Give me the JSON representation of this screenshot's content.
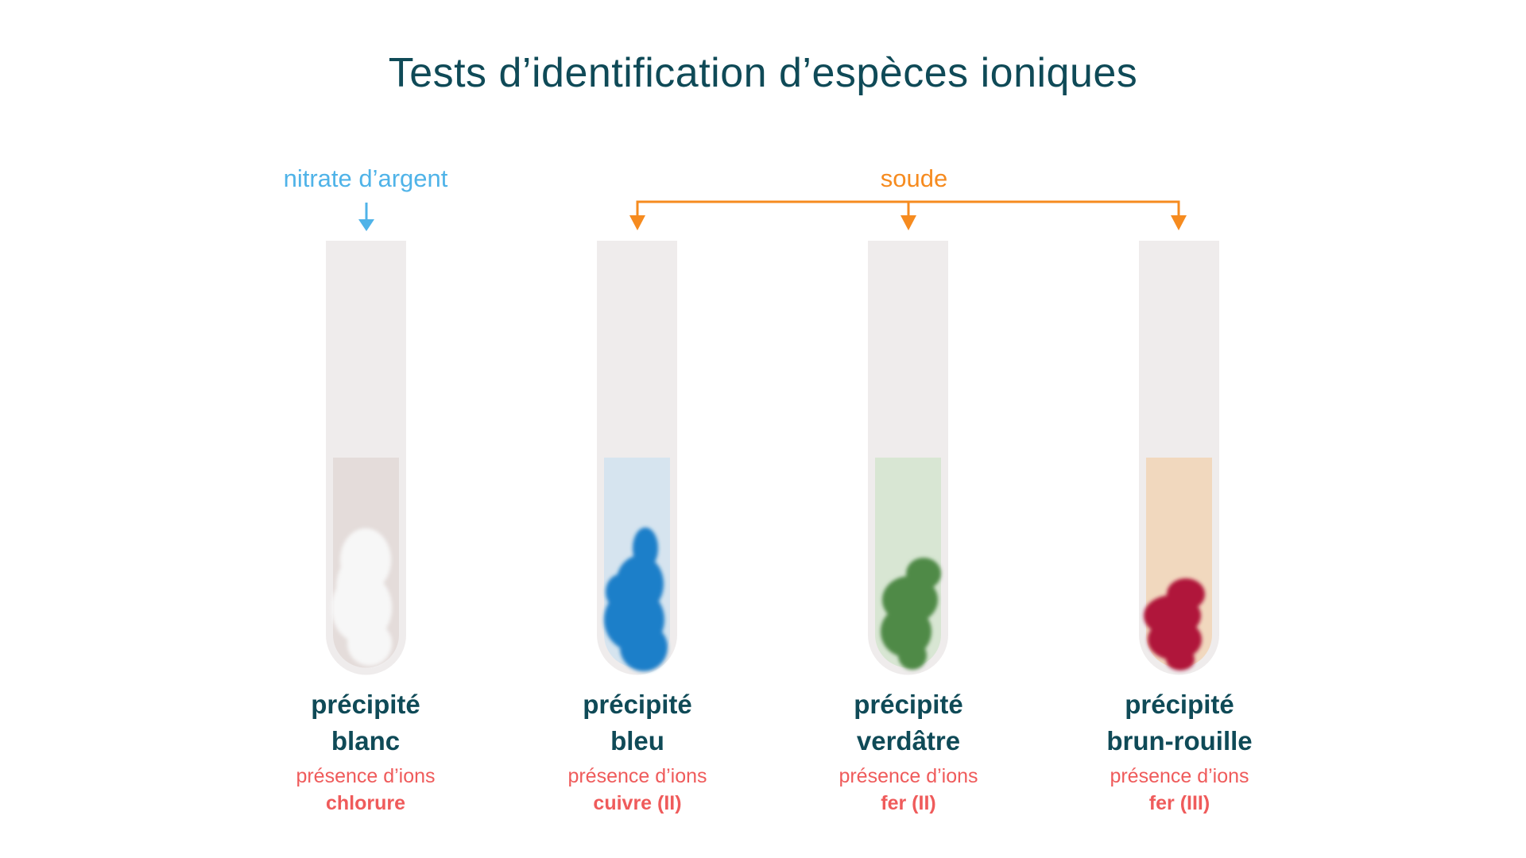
{
  "title": "Tests d’identification d’espèces ioniques",
  "reagents": {
    "silver_nitrate": "nitrate d’argent",
    "soda": "soude"
  },
  "colors": {
    "title": "#0f4a57",
    "silver_nitrate_arrow": "#4fb3e8",
    "soda_arrow": "#f68b1f",
    "presence_text": "#ef5b5b",
    "tube_glass": "#efecec"
  },
  "tubes": [
    {
      "precipitate_line1": "précipité",
      "precipitate_line2": "blanc",
      "presence": "présence d’ions",
      "ion": "chlorure",
      "liquid_color": "#e4dcda",
      "precipitate_color": "#f7f7f7"
    },
    {
      "precipitate_line1": "précipité",
      "precipitate_line2": "bleu",
      "presence": "présence d’ions",
      "ion": "cuivre (II)",
      "liquid_color": "#d6e4ef",
      "precipitate_color": "#1f7fc9"
    },
    {
      "precipitate_line1": "précipité",
      "precipitate_line2": "verdâtre",
      "presence": "présence d’ions",
      "ion": "fer (II)",
      "liquid_color": "#d8e6d3",
      "precipitate_color": "#4f8a46"
    },
    {
      "precipitate_line1": "précipité",
      "precipitate_line2": "brun-rouille",
      "presence": "présence d’ions",
      "ion": "fer (III)",
      "liquid_color": "#f1d8be",
      "precipitate_color": "#b0163a"
    }
  ]
}
